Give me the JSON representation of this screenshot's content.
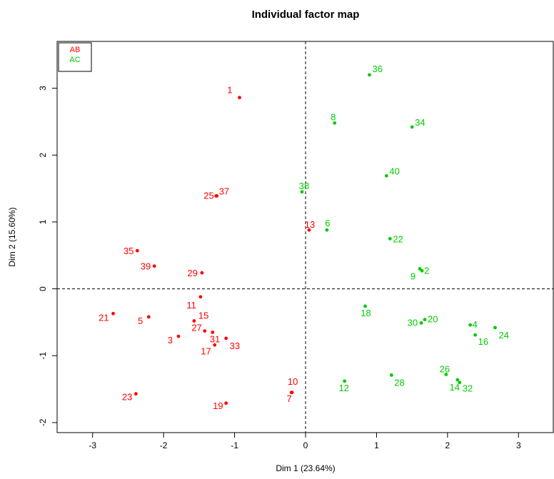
{
  "chart_data": {
    "type": "scatter",
    "title": "Individual factor map",
    "xlabel": "Dim 1 (23.64%)",
    "ylabel": "Dim 2 (15.60%)",
    "xlim": [
      -3.5,
      3.5
    ],
    "ylim": [
      -2.15,
      3.7
    ],
    "xticks": [
      -3,
      -2,
      -1,
      0,
      1,
      2,
      3
    ],
    "yticks": [
      -2,
      -1,
      0,
      1,
      2,
      3
    ],
    "reference_lines": {
      "x": 0,
      "y": 0,
      "style": "dashed"
    },
    "grid": false,
    "legend": {
      "position": "top-left",
      "entries": [
        "AB",
        "AC"
      ]
    },
    "series": [
      {
        "name": "AB",
        "color": "#ff0000",
        "points": [
          {
            "label": "1",
            "x": -0.93,
            "y": 2.86
          },
          {
            "label": "3",
            "x": -1.79,
            "y": -0.71
          },
          {
            "label": "5",
            "x": -2.21,
            "y": -0.42
          },
          {
            "label": "7",
            "x": -0.2,
            "y": -1.55
          },
          {
            "label": "10",
            "x": -0.19,
            "y": -1.55
          },
          {
            "label": "11",
            "x": -1.48,
            "y": -0.12
          },
          {
            "label": "13",
            "x": 0.05,
            "y": 0.88
          },
          {
            "label": "15",
            "x": -1.57,
            "y": -0.48
          },
          {
            "label": "17",
            "x": -1.28,
            "y": -0.84
          },
          {
            "label": "19",
            "x": -1.12,
            "y": -1.71
          },
          {
            "label": "21",
            "x": -2.71,
            "y": -0.37
          },
          {
            "label": "23",
            "x": -2.39,
            "y": -1.57
          },
          {
            "label": "25",
            "x": -1.26,
            "y": 1.39
          },
          {
            "label": "27",
            "x": -1.42,
            "y": -0.63
          },
          {
            "label": "29",
            "x": -1.46,
            "y": 0.24
          },
          {
            "label": "31",
            "x": -1.31,
            "y": -0.65
          },
          {
            "label": "33",
            "x": -1.12,
            "y": -0.74
          },
          {
            "label": "35",
            "x": -2.37,
            "y": 0.57
          },
          {
            "label": "37",
            "x": -1.25,
            "y": 1.39
          },
          {
            "label": "39",
            "x": -2.13,
            "y": 0.34
          }
        ]
      },
      {
        "name": "AC",
        "color": "#00cc00",
        "points": [
          {
            "label": "2",
            "x": 1.64,
            "y": 0.27
          },
          {
            "label": "4",
            "x": 2.32,
            "y": -0.54
          },
          {
            "label": "6",
            "x": 0.3,
            "y": 0.88
          },
          {
            "label": "8",
            "x": 0.41,
            "y": 2.48
          },
          {
            "label": "9",
            "x": 1.61,
            "y": 0.3
          },
          {
            "label": "12",
            "x": 0.55,
            "y": -1.38
          },
          {
            "label": "14",
            "x": 2.14,
            "y": -1.36
          },
          {
            "label": "16",
            "x": 2.39,
            "y": -0.69
          },
          {
            "label": "18",
            "x": 0.84,
            "y": -0.26
          },
          {
            "label": "20",
            "x": 1.68,
            "y": -0.46
          },
          {
            "label": "22",
            "x": 1.19,
            "y": 0.75
          },
          {
            "label": "24",
            "x": 2.67,
            "y": -0.58
          },
          {
            "label": "26",
            "x": 1.98,
            "y": -1.28
          },
          {
            "label": "28",
            "x": 1.21,
            "y": -1.29
          },
          {
            "label": "30",
            "x": 1.63,
            "y": -0.51
          },
          {
            "label": "32",
            "x": 2.17,
            "y": -1.4
          },
          {
            "label": "34",
            "x": 1.5,
            "y": 2.42
          },
          {
            "label": "36",
            "x": 0.9,
            "y": 3.2
          },
          {
            "label": "38",
            "x": -0.05,
            "y": 1.45
          },
          {
            "label": "40",
            "x": 1.14,
            "y": 1.69
          }
        ]
      }
    ]
  }
}
